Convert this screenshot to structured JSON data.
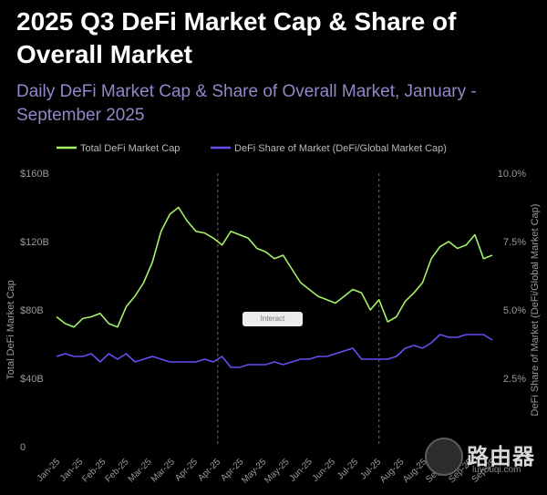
{
  "header": {
    "title": "2025 Q3 DeFi Market Cap & Share of Overall Market",
    "subtitle": "Daily DeFi Market Cap & Share of Overall Market, January - September 2025"
  },
  "interact_label": "Interact",
  "watermark": {
    "brand": "路由器",
    "site": "luyouqi.com"
  },
  "colors": {
    "market_cap": "#a3f267",
    "share": "#6b4cf0",
    "background": "#000000"
  },
  "chart_data": {
    "type": "line",
    "title": "2025 Q3 DeFi Market Cap & Share of Overall Market",
    "ylabel_left": "Total DeFi Market Cap",
    "ylabel_right": "DeFi Share of Market (DeFi/Global Market Cap)",
    "ylim_left": [
      0,
      160
    ],
    "ylim_right": [
      0,
      10
    ],
    "yticks_left": [
      "0",
      "$40B",
      "$80B",
      "$120B",
      "$160B"
    ],
    "yticks_right": [
      "2.5%",
      "5.0%",
      "7.5%",
      "10.0%"
    ],
    "xticks": [
      "Jan-25",
      "Jan-25",
      "Feb-25",
      "Feb-25",
      "Mar-25",
      "Mar-25",
      "Apr-25",
      "Apr-25",
      "Apr-25",
      "May-25",
      "May-25",
      "Jun-25",
      "Jun-25",
      "Jul-25",
      "Jul-25",
      "Aug-25",
      "Aug-25",
      "Sep-25",
      "Sep-25",
      "Sep-25"
    ],
    "grid": false,
    "legend_position": "top",
    "vlines_x": [
      0.37,
      0.74
    ],
    "series": [
      {
        "name": "Total DeFi Market Cap",
        "axis": "left",
        "x": [
          0,
          0.02,
          0.04,
          0.06,
          0.08,
          0.1,
          0.12,
          0.14,
          0.16,
          0.18,
          0.2,
          0.22,
          0.24,
          0.26,
          0.28,
          0.3,
          0.32,
          0.34,
          0.36,
          0.38,
          0.4,
          0.42,
          0.44,
          0.46,
          0.48,
          0.5,
          0.52,
          0.54,
          0.56,
          0.58,
          0.6,
          0.62,
          0.64,
          0.66,
          0.68,
          0.7,
          0.72,
          0.74,
          0.76,
          0.78,
          0.8,
          0.82,
          0.84,
          0.86,
          0.88,
          0.9,
          0.92,
          0.94,
          0.96,
          0.98,
          1.0
        ],
        "values": [
          76,
          72,
          70,
          75,
          76,
          78,
          72,
          70,
          82,
          88,
          96,
          108,
          126,
          136,
          140,
          132,
          126,
          125,
          122,
          118,
          126,
          124,
          122,
          116,
          114,
          110,
          112,
          104,
          96,
          92,
          88,
          86,
          84,
          88,
          92,
          90,
          80,
          86,
          73,
          76,
          85,
          90,
          96,
          110,
          117,
          120,
          116,
          118,
          124,
          110,
          112
        ]
      },
      {
        "name": "DeFi Share of Market (DeFi/Global Market Cap)",
        "axis": "right",
        "x": [
          0,
          0.02,
          0.04,
          0.06,
          0.08,
          0.1,
          0.12,
          0.14,
          0.16,
          0.18,
          0.2,
          0.22,
          0.24,
          0.26,
          0.28,
          0.3,
          0.32,
          0.34,
          0.36,
          0.38,
          0.4,
          0.42,
          0.44,
          0.46,
          0.48,
          0.5,
          0.52,
          0.54,
          0.56,
          0.58,
          0.6,
          0.62,
          0.64,
          0.66,
          0.68,
          0.7,
          0.72,
          0.74,
          0.76,
          0.78,
          0.8,
          0.82,
          0.84,
          0.86,
          0.88,
          0.9,
          0.92,
          0.94,
          0.96,
          0.98,
          1.0
        ],
        "values": [
          3.3,
          3.4,
          3.3,
          3.3,
          3.4,
          3.1,
          3.4,
          3.2,
          3.4,
          3.1,
          3.2,
          3.3,
          3.2,
          3.1,
          3.1,
          3.1,
          3.1,
          3.2,
          3.1,
          3.3,
          2.9,
          2.9,
          3.0,
          3.0,
          3.0,
          3.1,
          3.0,
          3.1,
          3.2,
          3.2,
          3.3,
          3.3,
          3.4,
          3.5,
          3.6,
          3.2,
          3.2,
          3.2,
          3.2,
          3.3,
          3.6,
          3.7,
          3.6,
          3.8,
          4.1,
          4.0,
          4.0,
          4.1,
          4.1,
          4.1,
          3.9
        ]
      }
    ]
  }
}
